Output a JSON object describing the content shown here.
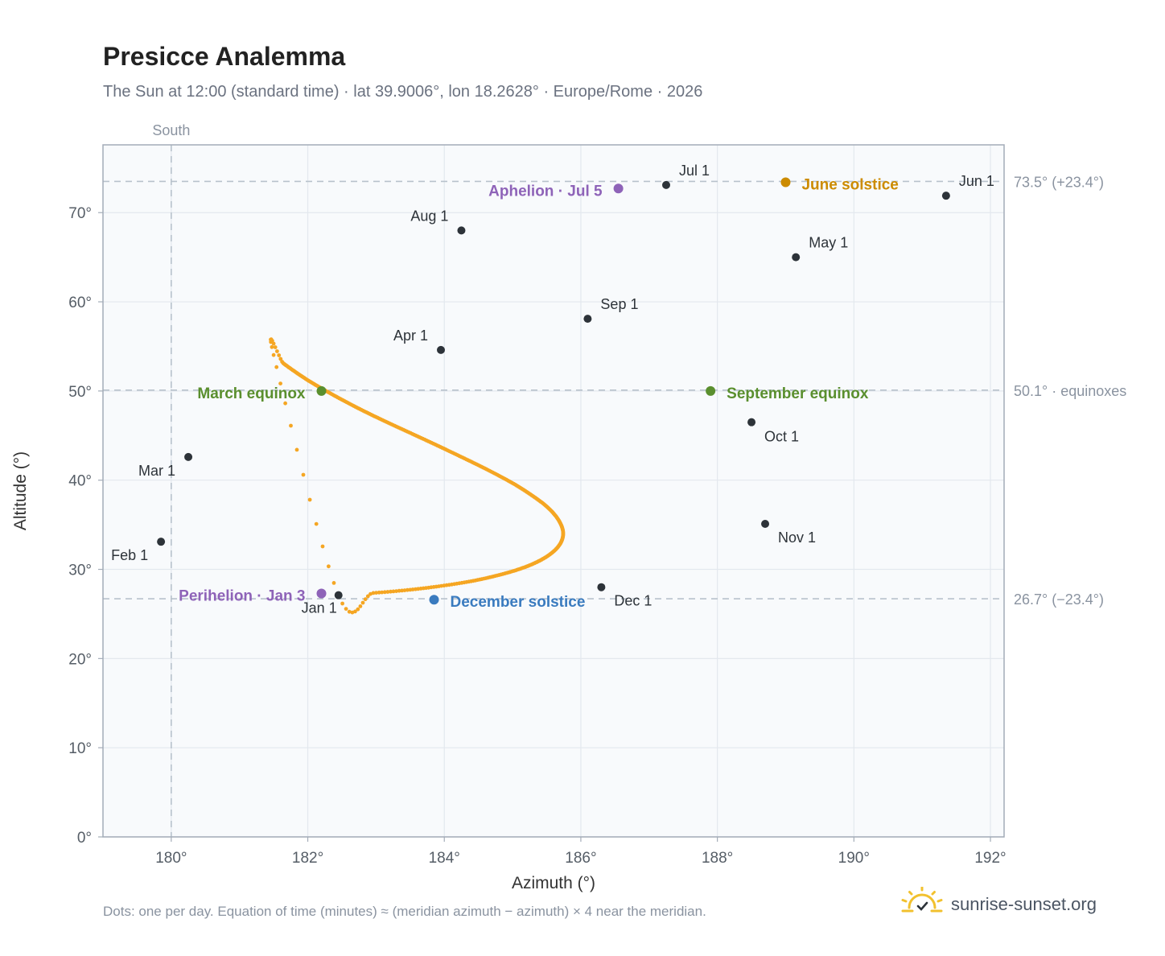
{
  "header": {
    "title": "Presicce Analemma",
    "subtitle": "The Sun at 12:00 (standard time) · lat 39.9006°, lon 18.2628° · Europe/Rome · 2026"
  },
  "footer": {
    "note": "Dots: one per day. Equation of time (minutes) ≈ (meridian azimuth − azimuth) × 4 near the meridian.",
    "brand": "sunrise-sunset.org"
  },
  "colors": {
    "curve": "#f5a623",
    "month_marker": "#2d3339",
    "equinox": "#5a8f2e",
    "june_solstice": "#cc8b00",
    "december_solstice": "#3a7bbf",
    "apsis": "#8e63b8",
    "plot_bg": "#f8fafc",
    "grid": "#e3e8ee",
    "ref_line": "#b8c2cc",
    "logo": "#f2c12e"
  },
  "chart_data": {
    "type": "scatter",
    "xlabel": "Azimuth (°)",
    "ylabel": "Altitude (°)",
    "xlim": [
      179,
      192.2
    ],
    "ylim": [
      0,
      77.6
    ],
    "x_ticks": [
      180,
      182,
      184,
      186,
      188,
      190,
      192
    ],
    "y_ticks": [
      0,
      10,
      20,
      30,
      40,
      50,
      60,
      70
    ],
    "x_tick_labels": [
      "180°",
      "182°",
      "184°",
      "186°",
      "188°",
      "190°",
      "192°"
    ],
    "y_tick_labels": [
      "0°",
      "10°",
      "20°",
      "30°",
      "40°",
      "50°",
      "60°",
      "70°"
    ],
    "grid": true,
    "analemma_daily": [
      [
        182.45,
        27.1
      ],
      [
        182.96,
        27.35
      ],
      [
        183.46,
        27.68
      ],
      [
        183.92,
        28.1
      ],
      [
        184.36,
        28.62
      ],
      [
        184.72,
        29.21
      ],
      [
        185.04,
        29.88
      ],
      [
        185.3,
        30.62
      ],
      [
        185.5,
        31.43
      ],
      [
        185.64,
        32.3
      ],
      [
        185.72,
        33.21
      ],
      [
        185.74,
        34.17
      ],
      [
        185.7,
        35.16
      ],
      [
        185.61,
        36.19
      ],
      [
        185.47,
        37.24
      ],
      [
        185.28,
        38.31
      ],
      [
        185.06,
        39.4
      ],
      [
        184.8,
        40.5
      ],
      [
        184.52,
        41.6
      ],
      [
        184.22,
        42.71
      ],
      [
        183.92,
        43.81
      ],
      [
        183.61,
        44.91
      ],
      [
        183.3,
        46.0
      ],
      [
        183.0,
        47.08
      ],
      [
        182.72,
        48.14
      ],
      [
        182.46,
        49.19
      ],
      [
        182.22,
        50.21
      ],
      [
        182.0,
        51.21
      ],
      [
        181.81,
        52.18
      ],
      [
        181.64,
        53.12
      ],
      [
        181.5,
        54.03
      ]
    ],
    "month_markers": [
      {
        "label": "Jan 1",
        "az": 182.45,
        "alt": 27.1
      },
      {
        "label": "Feb 1",
        "az": 179.85,
        "alt": 33.1
      },
      {
        "label": "Mar 1",
        "az": 180.25,
        "alt": 42.6
      },
      {
        "label": "Apr 1",
        "az": 183.95,
        "alt": 54.6
      },
      {
        "label": "May 1",
        "az": 189.15,
        "alt": 65.0
      },
      {
        "label": "Jun 1",
        "az": 191.35,
        "alt": 71.9
      },
      {
        "label": "Jul 1",
        "az": 187.25,
        "alt": 73.1
      },
      {
        "label": "Aug 1",
        "az": 184.25,
        "alt": 68.0
      },
      {
        "label": "Sep 1",
        "az": 186.1,
        "alt": 58.1
      },
      {
        "label": "Oct 1",
        "az": 188.5,
        "alt": 46.5
      },
      {
        "label": "Nov 1",
        "az": 188.7,
        "alt": 35.1
      },
      {
        "label": "Dec 1",
        "az": 186.3,
        "alt": 28.0
      }
    ],
    "events": [
      {
        "label": "March equinox",
        "az": 182.2,
        "alt": 50.0,
        "kind": "equinox"
      },
      {
        "label": "September equinox",
        "az": 187.9,
        "alt": 50.0,
        "kind": "equinox"
      },
      {
        "label": "June solstice",
        "az": 189.0,
        "alt": 73.4,
        "kind": "june_solstice"
      },
      {
        "label": "December solstice",
        "az": 183.85,
        "alt": 26.6,
        "kind": "december_solstice"
      },
      {
        "label": "Aphelion · Jul 5",
        "az": 186.55,
        "alt": 72.7,
        "kind": "apsis"
      },
      {
        "label": "Perihelion · Jan 3",
        "az": 182.2,
        "alt": 27.3,
        "kind": "apsis"
      }
    ],
    "reference_lines": {
      "horizontal": [
        {
          "alt": 73.5,
          "label": "73.5° (+23.4°)"
        },
        {
          "alt": 50.1,
          "label": "50.1° · equinoxes"
        },
        {
          "alt": 26.7,
          "label": "26.7° (−23.4°)"
        }
      ],
      "vertical": [
        {
          "az": 180,
          "label": "South"
        }
      ]
    }
  }
}
